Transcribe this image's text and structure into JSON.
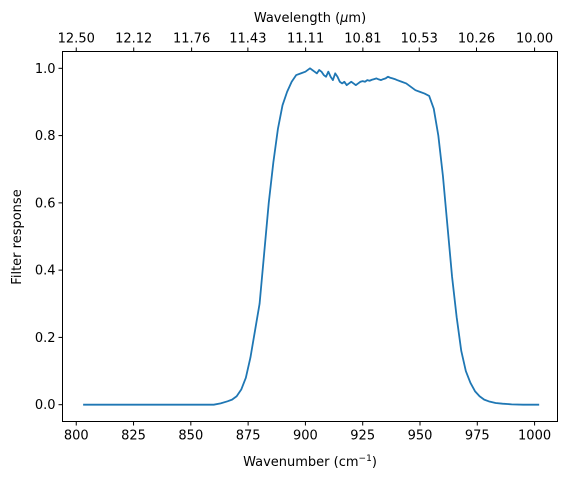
{
  "chart_data": {
    "type": "line",
    "xlabel": "Wavenumber (cm",
    "xlabel_sup": "−1",
    "xlabel_tail": ")",
    "ylabel": "Filter response",
    "top_xlabel": "Wavelength (",
    "top_xlabel_mu": "μ",
    "top_xlabel_tail": "m)",
    "xlim": [
      794,
      1010
    ],
    "ylim": [
      -0.05,
      1.05
    ],
    "xticks": [
      800,
      825,
      850,
      875,
      900,
      925,
      950,
      975,
      1000
    ],
    "yticks": [
      0.0,
      0.2,
      0.4,
      0.6,
      0.8,
      1.0
    ],
    "ytick_labels": [
      "0.0",
      "0.2",
      "0.4",
      "0.6",
      "0.8",
      "1.0"
    ],
    "top_ticks": [
      {
        "wavenumber": 800.0,
        "label": "12.50"
      },
      {
        "wavenumber": 825.08,
        "label": "12.12"
      },
      {
        "wavenumber": 850.34,
        "label": "11.76"
      },
      {
        "wavenumber": 874.89,
        "label": "11.43"
      },
      {
        "wavenumber": 900.09,
        "label": "11.11"
      },
      {
        "wavenumber": 925.07,
        "label": "10.81"
      },
      {
        "wavenumber": 949.67,
        "label": "10.53"
      },
      {
        "wavenumber": 974.66,
        "label": "10.26"
      },
      {
        "wavenumber": 1000.0,
        "label": "10.00"
      }
    ],
    "legend": "none",
    "grid": false,
    "series": [
      {
        "color": "#1f77b4",
        "x": [
          803,
          810,
          820,
          830,
          840,
          850,
          855,
          860,
          863,
          866,
          868,
          870,
          872,
          874,
          876,
          878,
          880,
          882,
          884,
          886,
          888,
          890,
          892,
          894,
          896,
          898,
          900,
          902,
          903,
          904,
          905,
          906,
          907,
          908,
          909,
          910,
          911,
          912,
          913,
          914,
          915,
          916,
          917,
          918,
          919,
          920,
          921,
          922,
          923,
          924,
          925,
          926,
          927,
          928,
          929,
          930,
          931,
          932,
          933,
          934,
          935,
          936,
          937,
          938,
          939,
          940,
          942,
          944,
          946,
          948,
          950,
          952,
          954,
          956,
          958,
          960,
          962,
          964,
          966,
          968,
          970,
          972,
          974,
          976,
          978,
          980,
          983,
          986,
          990,
          995,
          1002
        ],
        "y": [
          0.0,
          0.0,
          0.0,
          0.0,
          0.0,
          0.0,
          0.0,
          0.0,
          0.004,
          0.01,
          0.015,
          0.025,
          0.045,
          0.08,
          0.14,
          0.22,
          0.3,
          0.45,
          0.6,
          0.72,
          0.82,
          0.89,
          0.93,
          0.96,
          0.98,
          0.985,
          0.99,
          1.0,
          0.995,
          0.99,
          0.985,
          0.995,
          0.99,
          0.98,
          0.975,
          0.99,
          0.975,
          0.965,
          0.985,
          0.975,
          0.96,
          0.955,
          0.96,
          0.95,
          0.955,
          0.96,
          0.955,
          0.95,
          0.955,
          0.96,
          0.962,
          0.96,
          0.965,
          0.963,
          0.966,
          0.968,
          0.97,
          0.967,
          0.965,
          0.968,
          0.97,
          0.975,
          0.972,
          0.97,
          0.968,
          0.965,
          0.96,
          0.955,
          0.945,
          0.935,
          0.93,
          0.925,
          0.918,
          0.88,
          0.8,
          0.68,
          0.53,
          0.38,
          0.26,
          0.16,
          0.1,
          0.065,
          0.04,
          0.025,
          0.015,
          0.01,
          0.005,
          0.003,
          0.001,
          0.0,
          0.0
        ]
      }
    ]
  }
}
